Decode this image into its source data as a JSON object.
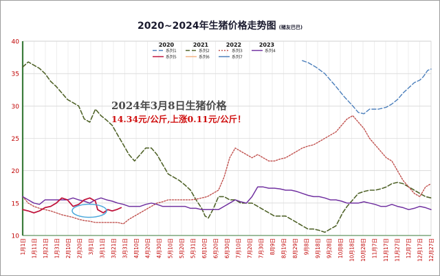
{
  "chart_data": {
    "type": "line",
    "title": "2020~2024年生猪价格走势图",
    "title_tag": "(猪友巴巴)",
    "ylim": [
      10,
      40
    ],
    "yticks": [
      "40",
      "35",
      "30",
      "25",
      "20",
      "15",
      "10"
    ],
    "xticks": [
      "1月1日",
      "1月11日",
      "1月21日",
      "1月31日",
      "2月10日",
      "2月20日",
      "3月1日",
      "3月11日",
      "3月21日",
      "3月31日",
      "4月10日",
      "4月20日",
      "4月30日",
      "5月10日",
      "5月20日",
      "5月31日",
      "6月10日",
      "6月20日",
      "6月30日",
      "7月10日",
      "7月20日",
      "7月30日",
      "8月9日",
      "8月19日",
      "8月29日",
      "9月8日",
      "9月18日",
      "9月28日",
      "10月8日",
      "10月18日",
      "10月28日",
      "11月7日",
      "11月17日",
      "11月27日",
      "12月7日",
      "12月17日",
      "12月27日"
    ],
    "grid": true,
    "legend": {
      "years": [
        "2020",
        "2021",
        "2022",
        "2023"
      ],
      "entries": [
        {
          "label": "系列1",
          "color": "#4a7ebb",
          "dash": "6 3"
        },
        {
          "label": "系列2",
          "color": "#4f6228",
          "dash": "6 3"
        },
        {
          "label": "系列3",
          "color": "#c0504d",
          "dash": "2 2"
        },
        {
          "label": "系列4",
          "color": "#7030a0",
          "dash": ""
        },
        {
          "label": "系列5",
          "color": "#c0143c",
          "dash": ""
        },
        {
          "label": "系列6",
          "color": "#f4b183",
          "dash": ""
        },
        {
          "label": "系列7",
          "color": "#4a7ebb",
          "dash": ""
        }
      ]
    },
    "annotation": {
      "headline": "2024年3月8日生猪价格",
      "detail": "14.34元/公斤,上涨0.11元/公斤！",
      "headline_color": "#4a4a4a",
      "detail_color": "#d01010"
    },
    "series": [
      {
        "name": "系列1",
        "color": "#4a7ebb",
        "dash": "6 3",
        "width": 1.4,
        "x": [
          250,
          255,
          262,
          270,
          275,
          280,
          287,
          295,
          300,
          305,
          310,
          318,
          325,
          330,
          335,
          340,
          345,
          350,
          355,
          358,
          362,
          365
        ],
        "y": [
          37.0,
          36.7,
          36.0,
          35.0,
          34.0,
          33.0,
          31.5,
          30.0,
          29.0,
          28.8,
          29.5,
          29.5,
          29.8,
          30.3,
          31.0,
          32.0,
          32.8,
          33.6,
          34.0,
          34.5,
          35.5,
          35.7
        ]
      },
      {
        "name": "系列2",
        "color": "#4f6228",
        "dash": "6 3",
        "width": 1.6,
        "x": [
          0,
          5,
          10,
          15,
          20,
          25,
          30,
          35,
          40,
          45,
          50,
          55,
          60,
          65,
          70,
          75,
          80,
          85,
          90,
          95,
          100,
          105,
          110,
          115,
          120,
          125,
          130,
          135,
          140,
          145,
          150,
          155,
          160,
          163,
          166,
          170,
          175,
          180,
          185,
          190,
          195,
          200,
          205,
          210,
          215,
          220,
          225,
          230,
          235,
          240,
          245,
          250,
          255,
          260,
          265,
          270,
          275,
          280,
          283,
          286,
          290,
          295,
          300,
          305,
          310,
          315,
          320,
          325,
          330,
          335,
          340,
          345,
          350,
          355,
          360,
          365
        ],
        "y": [
          36.0,
          36.8,
          36.3,
          35.8,
          35.0,
          33.8,
          33.0,
          32.0,
          31.0,
          30.5,
          30.0,
          28.0,
          27.5,
          29.5,
          28.5,
          27.8,
          27.0,
          25.5,
          24.0,
          22.5,
          21.5,
          22.5,
          23.5,
          23.5,
          22.5,
          21.0,
          19.5,
          19.0,
          18.5,
          17.8,
          17.0,
          15.5,
          14.2,
          13.0,
          12.7,
          14.0,
          16.0,
          16.0,
          15.5,
          15.5,
          15.0,
          15.0,
          15.0,
          14.5,
          14.0,
          13.5,
          13.0,
          13.0,
          13.0,
          12.5,
          12.0,
          11.5,
          11.0,
          11.0,
          10.8,
          10.5,
          11.0,
          11.5,
          12.5,
          13.5,
          14.5,
          15.5,
          16.5,
          16.8,
          17.0,
          17.0,
          17.2,
          17.5,
          18.0,
          18.2,
          18.0,
          17.5,
          17.0,
          16.5,
          16.0,
          15.8
        ]
      },
      {
        "name": "系列3",
        "color": "#c0504d",
        "dash": "2 2",
        "width": 1.4,
        "x": [
          0,
          5,
          10,
          15,
          20,
          25,
          30,
          35,
          40,
          45,
          50,
          55,
          60,
          65,
          70,
          75,
          80,
          85,
          90,
          95,
          100,
          105,
          110,
          115,
          120,
          125,
          130,
          135,
          140,
          145,
          150,
          155,
          160,
          165,
          170,
          175,
          180,
          185,
          190,
          195,
          200,
          205,
          210,
          215,
          220,
          225,
          230,
          235,
          240,
          245,
          250,
          255,
          260,
          265,
          270,
          275,
          280,
          285,
          290,
          295,
          300,
          305,
          310,
          315,
          320,
          325,
          330,
          335,
          340,
          345,
          350,
          355,
          360,
          365
        ],
        "y": [
          16.0,
          15.0,
          14.5,
          14.2,
          14.0,
          13.8,
          13.5,
          13.2,
          13.0,
          12.8,
          12.5,
          12.3,
          12.2,
          12.0,
          12.0,
          12.0,
          12.0,
          12.0,
          11.8,
          12.5,
          13.0,
          13.5,
          14.0,
          14.5,
          15.0,
          15.2,
          15.5,
          15.5,
          15.5,
          15.5,
          15.5,
          15.6,
          15.8,
          16.0,
          16.5,
          17.0,
          19.0,
          22.0,
          23.5,
          23.0,
          22.5,
          22.0,
          22.5,
          22.0,
          21.5,
          21.5,
          21.8,
          22.0,
          22.5,
          23.0,
          23.5,
          23.8,
          24.0,
          24.5,
          25.0,
          25.5,
          26.0,
          27.0,
          28.0,
          28.5,
          27.5,
          26.5,
          25.0,
          24.0,
          23.0,
          22.0,
          21.5,
          20.0,
          18.5,
          17.5,
          16.5,
          16.0,
          17.5,
          18.0
        ]
      },
      {
        "name": "系列4",
        "color": "#7030a0",
        "dash": "",
        "width": 1.5,
        "x": [
          0,
          5,
          10,
          15,
          20,
          25,
          30,
          35,
          40,
          45,
          50,
          55,
          60,
          65,
          70,
          75,
          80,
          85,
          90,
          95,
          100,
          105,
          110,
          115,
          120,
          125,
          130,
          135,
          140,
          145,
          150,
          155,
          160,
          165,
          170,
          175,
          180,
          185,
          190,
          195,
          200,
          205,
          210,
          215,
          220,
          225,
          230,
          235,
          240,
          245,
          250,
          255,
          260,
          265,
          270,
          275,
          280,
          285,
          290,
          295,
          300,
          305,
          310,
          315,
          320,
          325,
          330,
          335,
          340,
          345,
          350,
          355,
          360,
          365
        ],
        "y": [
          16.0,
          15.5,
          15.0,
          14.8,
          15.5,
          15.5,
          15.5,
          15.5,
          15.5,
          15.8,
          15.5,
          15.3,
          15.0,
          15.5,
          15.8,
          15.5,
          15.3,
          15.0,
          14.8,
          14.5,
          14.5,
          14.5,
          14.8,
          15.0,
          14.8,
          14.5,
          14.5,
          14.5,
          14.5,
          14.5,
          14.2,
          14.2,
          14.0,
          14.0,
          14.0,
          14.0,
          14.5,
          15.0,
          15.5,
          15.2,
          15.0,
          16.0,
          17.5,
          17.5,
          17.3,
          17.3,
          17.2,
          17.0,
          17.0,
          16.8,
          16.5,
          16.2,
          16.0,
          16.0,
          15.8,
          15.5,
          15.5,
          15.3,
          15.0,
          15.0,
          15.0,
          15.2,
          15.0,
          14.8,
          14.5,
          14.5,
          14.8,
          14.5,
          14.3,
          14.0,
          14.2,
          14.5,
          14.3,
          14.0
        ]
      },
      {
        "name": "系列5",
        "color": "#c0143c",
        "dash": "",
        "width": 1.8,
        "x": [
          0,
          5,
          10,
          15,
          20,
          25,
          30,
          35,
          40,
          45,
          50,
          55,
          60,
          65,
          67,
          72,
          76,
          80,
          84,
          88
        ],
        "y": [
          14.0,
          13.8,
          13.5,
          13.8,
          14.3,
          14.5,
          15.0,
          15.8,
          15.5,
          14.5,
          14.8,
          15.5,
          15.8,
          15.3,
          14.0,
          13.5,
          14.0,
          13.8,
          14.0,
          14.3
        ]
      }
    ]
  }
}
